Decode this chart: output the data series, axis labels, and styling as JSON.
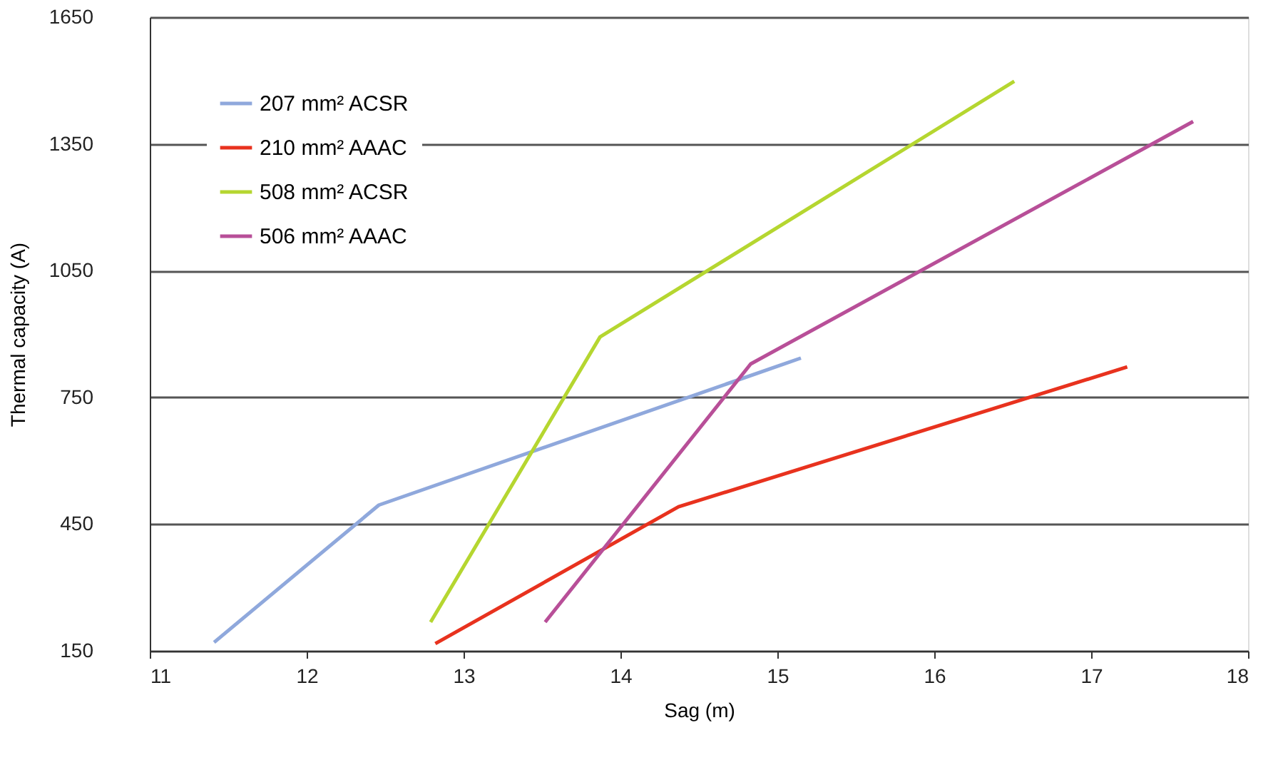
{
  "chart_data": {
    "type": "line",
    "xlabel": "Sag (m)",
    "ylabel": "Thermal capacity (A)",
    "xlim": [
      11,
      18
    ],
    "xticks": [
      11,
      12,
      13,
      14,
      15,
      16,
      17,
      18
    ],
    "ylim": [
      150,
      1650
    ],
    "yticks": [
      150,
      450,
      750,
      1050,
      1350,
      1650
    ],
    "grid": "y",
    "legend": "top left",
    "marker": "none",
    "line_style": "solid",
    "series": [
      {
        "name": "207 mm² ACSR",
        "color": "#8fa8dc",
        "x": [
          11.41,
          12.46,
          15.15
        ],
        "values": [
          170,
          495,
          843
        ]
      },
      {
        "name": "210 mm² AAAC",
        "color": "#e8321e",
        "x": [
          12.82,
          14.37,
          17.23
        ],
        "values": [
          167,
          491,
          822
        ]
      },
      {
        "name": "508 mm² ACSR",
        "color": "#b5d630",
        "x": [
          12.79,
          13.87,
          16.51
        ],
        "values": [
          218,
          893,
          1498
        ]
      },
      {
        "name": "506 mm² AAAC",
        "color": "#b84f98",
        "x": [
          13.52,
          14.83,
          17.65
        ],
        "values": [
          218,
          829,
          1403
        ]
      }
    ]
  }
}
